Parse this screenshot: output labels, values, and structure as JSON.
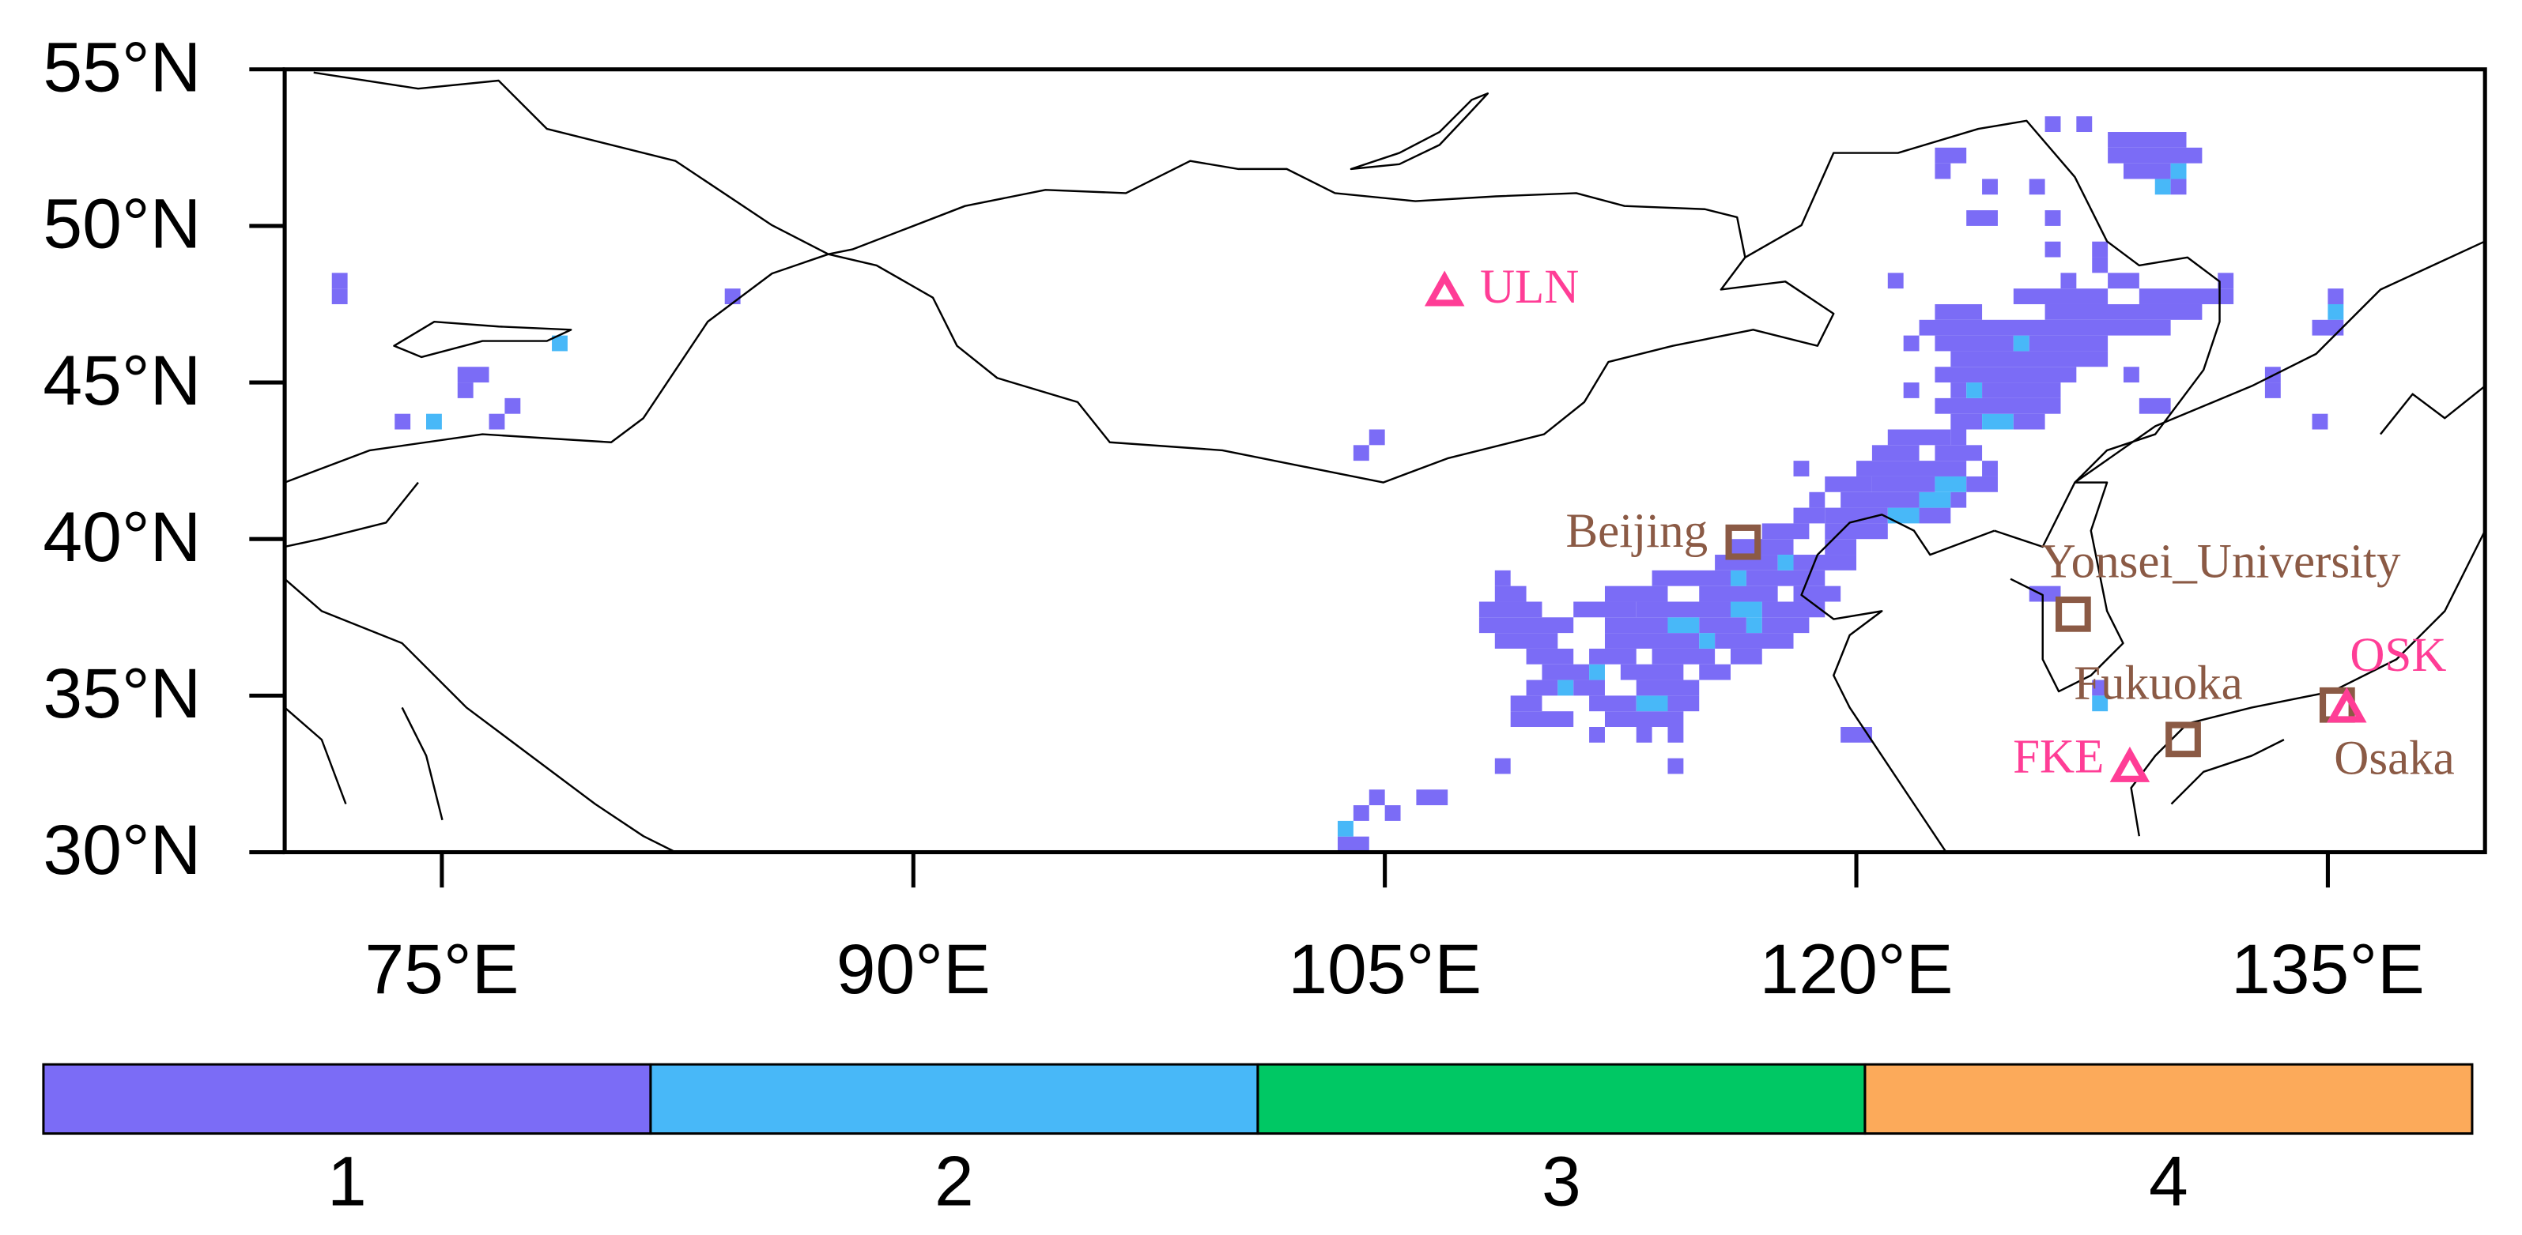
{
  "map": {
    "lonlim": [
      70,
      140
    ],
    "latlim": [
      30,
      55
    ],
    "lon_ticks": [
      {
        "value": 75,
        "label": "75°E"
      },
      {
        "value": 90,
        "label": "90°E"
      },
      {
        "value": 105,
        "label": "105°E"
      },
      {
        "value": 120,
        "label": "120°E"
      },
      {
        "value": 135,
        "label": "135°E"
      }
    ],
    "lat_ticks": [
      {
        "value": 30,
        "label": "30°N"
      },
      {
        "value": 35,
        "label": "35°N"
      },
      {
        "value": 40,
        "label": "40°N"
      },
      {
        "value": 45,
        "label": "45°N"
      },
      {
        "value": 50,
        "label": "50°N"
      },
      {
        "value": 55,
        "label": "55°N"
      }
    ],
    "sites": [
      {
        "label": "ULN",
        "lon": 106.9,
        "lat": 47.9,
        "marker": "triangle",
        "color": "#ff3d96"
      },
      {
        "label": "Beijing",
        "lon": 116.4,
        "lat": 39.9,
        "marker": "square",
        "color": "#8b5a45"
      },
      {
        "label": "Yonsei_University",
        "lon": 126.9,
        "lat": 37.6,
        "marker": "square",
        "color": "#8b5a45"
      },
      {
        "label": "Fukuoka",
        "lon": 130.4,
        "lat": 33.6,
        "marker": "square",
        "color": "#8b5a45"
      },
      {
        "label": "Osaka",
        "lon": 135.3,
        "lat": 34.7,
        "marker": "square",
        "color": "#8b5a45"
      },
      {
        "label": "OSK",
        "lon": 135.6,
        "lat": 34.6,
        "marker": "triangle",
        "color": "#ff3d96"
      },
      {
        "label": "FKE",
        "lon": 128.7,
        "lat": 32.7,
        "marker": "triangle",
        "color": "#ff3d96"
      }
    ],
    "cells": [
      [
        47.5,
        71.5,
        72,
        1
      ],
      [
        48,
        71.5,
        72,
        1
      ],
      [
        45,
        75.5,
        76.5,
        1
      ],
      [
        44.5,
        75.5,
        76,
        1
      ],
      [
        43.5,
        74.5,
        75,
        2
      ],
      [
        43.5,
        73.5,
        74,
        1
      ],
      [
        43.5,
        76.5,
        77,
        1
      ],
      [
        44,
        77,
        77.5,
        1
      ],
      [
        46,
        78.5,
        79,
        2
      ],
      [
        47.5,
        84,
        84.5,
        1
      ],
      [
        43,
        104.5,
        105,
        1
      ],
      [
        42.5,
        104,
        104.5,
        1
      ],
      [
        30,
        103.5,
        104.5,
        1
      ],
      [
        30.5,
        103.5,
        104,
        2
      ],
      [
        31,
        104,
        104.5,
        1
      ],
      [
        31.5,
        104.5,
        105,
        1
      ],
      [
        31,
        105,
        105.5,
        1
      ],
      [
        31.5,
        106,
        107,
        1
      ],
      [
        32.5,
        108.5,
        109,
        1
      ],
      [
        33.5,
        111.5,
        112,
        1
      ],
      [
        33.5,
        113,
        113.5,
        1
      ],
      [
        33.5,
        114,
        114.5,
        1
      ],
      [
        32.5,
        114,
        114.5,
        1
      ],
      [
        34,
        109,
        111,
        1
      ],
      [
        34,
        112,
        114.5,
        1
      ],
      [
        34.5,
        109,
        110,
        1
      ],
      [
        34.5,
        111.5,
        113,
        1
      ],
      [
        34.5,
        113,
        114,
        2
      ],
      [
        34.5,
        114,
        115,
        1
      ],
      [
        35,
        109.5,
        110.5,
        1
      ],
      [
        35,
        110.5,
        111,
        2
      ],
      [
        35,
        111,
        112,
        1
      ],
      [
        35,
        113,
        115,
        1
      ],
      [
        35.5,
        110,
        111.5,
        1
      ],
      [
        35.5,
        111.5,
        112,
        2
      ],
      [
        35.5,
        112.5,
        114.5,
        1
      ],
      [
        35.5,
        115,
        116,
        1
      ],
      [
        36,
        109.5,
        111,
        1
      ],
      [
        36,
        111.5,
        113,
        1
      ],
      [
        36,
        113.5,
        115.5,
        1
      ],
      [
        36,
        116,
        117,
        1
      ],
      [
        36.5,
        108.5,
        110.5,
        1
      ],
      [
        36.5,
        112,
        115,
        1
      ],
      [
        36.5,
        115,
        115.5,
        2
      ],
      [
        36.5,
        115.5,
        118,
        1
      ],
      [
        37,
        108,
        111,
        1
      ],
      [
        37,
        112,
        114,
        1
      ],
      [
        37,
        114,
        115,
        2
      ],
      [
        37,
        115,
        116.5,
        1
      ],
      [
        37,
        116.5,
        117,
        2
      ],
      [
        37,
        117,
        118.5,
        1
      ],
      [
        37.5,
        108,
        110,
        1
      ],
      [
        37.5,
        111,
        113,
        1
      ],
      [
        37.5,
        113,
        116,
        1
      ],
      [
        37.5,
        116,
        117,
        2
      ],
      [
        37.5,
        117,
        119,
        1
      ],
      [
        38,
        108.5,
        109.5,
        1
      ],
      [
        38,
        112,
        114,
        1
      ],
      [
        38,
        115,
        117.5,
        1
      ],
      [
        38,
        118,
        119.5,
        1
      ],
      [
        38.5,
        108.5,
        109,
        1
      ],
      [
        38.5,
        113.5,
        116,
        1
      ],
      [
        38.5,
        116,
        116.5,
        2
      ],
      [
        38.5,
        116.5,
        119,
        1
      ],
      [
        39,
        115.5,
        117.5,
        1
      ],
      [
        39,
        117.5,
        118,
        2
      ],
      [
        39,
        118,
        120,
        1
      ],
      [
        39.5,
        116,
        118,
        1
      ],
      [
        39.5,
        119,
        120,
        1
      ],
      [
        40,
        117,
        118.5,
        1
      ],
      [
        40,
        119,
        121,
        1
      ],
      [
        40.5,
        118,
        119,
        1
      ],
      [
        40.5,
        119,
        121,
        1
      ],
      [
        40.5,
        121,
        122,
        2
      ],
      [
        40.5,
        122,
        123,
        1
      ],
      [
        41,
        118.5,
        119,
        1
      ],
      [
        41,
        119.5,
        122,
        1
      ],
      [
        41,
        122,
        123,
        2
      ],
      [
        41,
        123,
        123.5,
        1
      ],
      [
        41.5,
        119,
        120.5,
        1
      ],
      [
        41.5,
        120.5,
        122.5,
        1
      ],
      [
        41.5,
        122.5,
        123.5,
        2
      ],
      [
        41.5,
        123.5,
        124.5,
        1
      ],
      [
        42,
        118,
        118.5,
        1
      ],
      [
        42,
        120,
        123.5,
        1
      ],
      [
        42,
        124,
        124.5,
        1
      ],
      [
        42.5,
        120.5,
        122,
        1
      ],
      [
        42.5,
        122.5,
        124,
        1
      ],
      [
        43,
        121,
        123,
        1
      ],
      [
        43,
        123,
        123.5,
        1
      ],
      [
        43.5,
        123,
        124,
        1
      ],
      [
        43.5,
        124,
        125,
        2
      ],
      [
        43.5,
        125,
        126,
        1
      ],
      [
        44,
        122.5,
        126.5,
        1
      ],
      [
        44,
        129,
        130,
        1
      ],
      [
        44.5,
        121.5,
        122,
        1
      ],
      [
        44.5,
        123,
        123.5,
        1
      ],
      [
        44.5,
        123.5,
        124,
        2
      ],
      [
        44.5,
        124,
        126.5,
        1
      ],
      [
        45,
        122.5,
        127,
        1
      ],
      [
        45,
        128.5,
        129,
        1
      ],
      [
        45.5,
        123,
        128,
        1
      ],
      [
        46,
        121.5,
        122,
        1
      ],
      [
        46,
        122.5,
        125,
        1
      ],
      [
        46,
        125,
        125.5,
        2
      ],
      [
        46,
        125.5,
        128,
        1
      ],
      [
        46.5,
        122,
        130,
        1
      ],
      [
        47,
        122.5,
        124,
        1
      ],
      [
        47,
        126,
        131,
        1
      ],
      [
        47.5,
        125,
        128,
        1
      ],
      [
        47.5,
        129,
        132,
        1
      ],
      [
        48,
        121,
        121.5,
        1
      ],
      [
        48,
        126.5,
        127,
        1
      ],
      [
        48,
        128,
        129,
        1
      ],
      [
        48,
        131.5,
        132,
        1
      ],
      [
        48.5,
        127.5,
        128,
        1
      ],
      [
        49,
        126,
        126.5,
        1
      ],
      [
        49,
        127.5,
        128,
        1
      ],
      [
        50,
        123.5,
        124.5,
        1
      ],
      [
        50,
        126,
        126.5,
        1
      ],
      [
        51,
        124,
        124.5,
        1
      ],
      [
        51,
        125.5,
        126,
        1
      ],
      [
        51,
        129.5,
        130,
        2
      ],
      [
        51,
        130,
        130.5,
        1
      ],
      [
        51.5,
        122.5,
        123,
        1
      ],
      [
        51.5,
        128.5,
        130,
        1
      ],
      [
        51.5,
        130,
        130.5,
        2
      ],
      [
        52,
        122.5,
        123.5,
        1
      ],
      [
        52,
        128,
        131,
        1
      ],
      [
        52.5,
        128,
        130.5,
        1
      ],
      [
        53,
        126,
        126.5,
        1
      ],
      [
        53,
        127,
        127.5,
        1
      ],
      [
        47.5,
        135,
        135.5,
        1
      ],
      [
        47,
        135,
        135.5,
        2
      ],
      [
        46.5,
        134.5,
        135.5,
        1
      ],
      [
        45,
        133,
        133.5,
        1
      ],
      [
        44.5,
        133,
        133.5,
        1
      ],
      [
        43.5,
        134.5,
        135,
        1
      ],
      [
        38,
        125.5,
        126.5,
        1
      ],
      [
        35,
        127.5,
        128,
        1
      ],
      [
        34.5,
        127.5,
        128,
        2
      ],
      [
        33.5,
        119.5,
        120.5,
        1
      ]
    ]
  },
  "colorbar": {
    "levels": [
      1,
      2,
      3,
      4
    ],
    "colors": [
      "#7b6cf6",
      "#48b8f8",
      "#00c864",
      "#fcaa5a"
    ]
  }
}
